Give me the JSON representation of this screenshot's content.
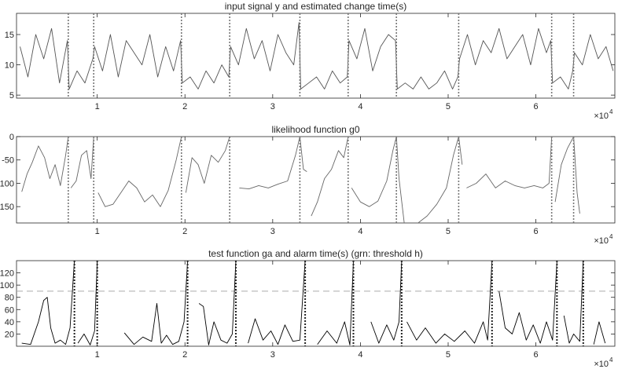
{
  "chart_data": [
    {
      "type": "line",
      "title": "input signal y and estimated change time(s)",
      "xlabel": "",
      "ylabel": "",
      "x_exponent": "×10",
      "x_exponent_power": "4",
      "xlim": [
        800,
        69000
      ],
      "ylim": [
        4.5,
        18.5
      ],
      "xticks": [
        10000,
        20000,
        30000,
        40000,
        50000,
        60000
      ],
      "xtick_labels": [
        "1",
        "2",
        "3",
        "4",
        "5",
        "6"
      ],
      "yticks": [
        5,
        10,
        15
      ],
      "ytick_labels": [
        "5",
        "10",
        "15"
      ],
      "grid": false,
      "change_times": [
        6700,
        9600,
        19600,
        25100,
        33100,
        38600,
        44100,
        51200,
        61800,
        64300
      ],
      "series": [
        {
          "color": "#555555",
          "x": [
            1200,
            2100,
            3000,
            3900,
            4800,
            5700,
            6600,
            6800,
            7700,
            8600,
            9500,
            9700,
            10600,
            11500,
            12400,
            13300,
            14200,
            15100,
            16000,
            16900,
            17800,
            18700,
            19500,
            19700,
            20600,
            21500,
            22400,
            23300,
            24200,
            25000,
            25200,
            26100,
            27000,
            27900,
            28800,
            29700,
            30600,
            31500,
            32400,
            33000,
            33200,
            34100,
            35000,
            35900,
            36800,
            37700,
            38500,
            38700,
            39600,
            40500,
            41400,
            42300,
            43200,
            44000,
            44200,
            45100,
            46000,
            46900,
            47800,
            48700,
            49600,
            50500,
            51100,
            51300,
            52200,
            53100,
            54000,
            54900,
            55800,
            56700,
            57600,
            58500,
            59400,
            60300,
            61200,
            61700,
            61900,
            62800,
            63700,
            64200,
            64400,
            65300,
            66200,
            67100,
            68000,
            68800
          ],
          "y": [
            13,
            8,
            15,
            11,
            16,
            7,
            14,
            6,
            9,
            7,
            11,
            13,
            9,
            15,
            8,
            14,
            12,
            10,
            15,
            8,
            13,
            9,
            14,
            7,
            8,
            6,
            9,
            7,
            10,
            8,
            13,
            10,
            16,
            11,
            14,
            9,
            15,
            12,
            10,
            17,
            6,
            7,
            8,
            6,
            9,
            7,
            8,
            14,
            11,
            16,
            9,
            13,
            15,
            14,
            6,
            7,
            6,
            8,
            6,
            7,
            9,
            6,
            8,
            11,
            15,
            10,
            14,
            12,
            16,
            11,
            13,
            15,
            10,
            16,
            12,
            14,
            7,
            8,
            6,
            9,
            12,
            10,
            15,
            11,
            13,
            9
          ]
        }
      ]
    },
    {
      "type": "line",
      "title": "likelihood function g0",
      "xlabel": "",
      "ylabel": "",
      "x_exponent": "×10",
      "x_exponent_power": "4",
      "xlim": [
        800,
        69000
      ],
      "ylim": [
        -185,
        0
      ],
      "xticks": [
        10000,
        20000,
        30000,
        40000,
        50000,
        60000
      ],
      "xtick_labels": [
        "1",
        "2",
        "3",
        "4",
        "5",
        "6"
      ],
      "yticks": [
        0,
        -50,
        -100,
        -150
      ],
      "ytick_labels": [
        "0",
        "-50",
        "-100",
        "-150"
      ],
      "grid": false,
      "change_times": [
        6700,
        9600,
        19600,
        25100,
        33100,
        38600,
        44100,
        51200,
        61800,
        64300
      ],
      "series": [
        {
          "color": "#666666",
          "x": [
            1400,
            2000,
            2600,
            3300,
            4000,
            4600,
            5200,
            5800,
            6400,
            6700,
            null,
            7000,
            7600,
            8200,
            8800,
            9300,
            9600,
            null,
            10100,
            10900,
            11800,
            12700,
            13600,
            14500,
            15400,
            16300,
            17200,
            18100,
            19000,
            19600,
            null,
            20100,
            20800,
            21500,
            22200,
            23000,
            23800,
            24600,
            25100,
            null,
            26200,
            27300,
            28400,
            29500,
            30600,
            31700,
            32600,
            33100,
            33500,
            33900,
            null,
            34400,
            35100,
            35900,
            36700,
            37500,
            38100,
            38600,
            null,
            39000,
            40000,
            41000,
            42000,
            43000,
            43700,
            44100,
            44400,
            45000,
            null,
            45400,
            46500,
            47600,
            48700,
            49800,
            50600,
            51200,
            51600,
            null,
            52100,
            53200,
            54300,
            55400,
            56500,
            57600,
            58700,
            59800,
            60800,
            61500,
            61800,
            null,
            62200,
            62900,
            63600,
            64300,
            64700,
            65000
          ],
          "y": [
            -118,
            -80,
            -55,
            -20,
            -45,
            -90,
            -60,
            -105,
            -40,
            0,
            null,
            -110,
            -95,
            -40,
            -30,
            -90,
            0,
            null,
            -120,
            -150,
            -145,
            -120,
            -95,
            -110,
            -140,
            -125,
            -150,
            -115,
            -50,
            0,
            null,
            -120,
            -45,
            -60,
            -100,
            -40,
            -55,
            -30,
            0,
            null,
            -110,
            -112,
            -105,
            -110,
            -102,
            -95,
            -40,
            0,
            -70,
            -75,
            null,
            -170,
            -140,
            -90,
            -70,
            -30,
            -45,
            0,
            null,
            -110,
            -140,
            -150,
            -138,
            -95,
            -30,
            0,
            -90,
            -186,
            null,
            -186,
            -186,
            -170,
            -145,
            -110,
            -40,
            0,
            -60,
            null,
            -110,
            -100,
            -80,
            -110,
            -95,
            -105,
            -110,
            -105,
            -110,
            -100,
            0,
            null,
            -140,
            -60,
            -25,
            0,
            -120,
            -165
          ]
        }
      ]
    },
    {
      "type": "line",
      "title": "test function ga and alarm time(s) (grn: threshold h)",
      "xlabel": "",
      "ylabel": "",
      "x_exponent": "×10",
      "x_exponent_power": "4",
      "xlim": [
        800,
        69000
      ],
      "ylim": [
        0,
        140
      ],
      "xticks": [
        10000,
        20000,
        30000,
        40000,
        50000,
        60000
      ],
      "xtick_labels": [
        "1",
        "2",
        "3",
        "4",
        "5",
        "6"
      ],
      "yticks": [
        20,
        40,
        60,
        80,
        100,
        120
      ],
      "ytick_labels": [
        "20",
        "40",
        "60",
        "80",
        "100",
        "120"
      ],
      "grid": false,
      "threshold": 90,
      "alarm_times": [
        7400,
        10000,
        20300,
        25800,
        33700,
        39200,
        44700,
        55000,
        62400,
        65400
      ],
      "series": [
        {
          "color": "#000000",
          "x": [
            1400,
            2400,
            3300,
            3900,
            4300,
            4700,
            5200,
            5800,
            6400,
            6900,
            7400,
            null,
            7800,
            8500,
            9200,
            9700,
            10000,
            null,
            13100,
            14200,
            15200,
            16200,
            16800,
            17300,
            17900,
            18600,
            19300,
            19900,
            20300,
            null,
            21600,
            22100,
            22700,
            23300,
            24100,
            24800,
            25400,
            25800,
            null,
            27200,
            28000,
            28900,
            29800,
            30600,
            31400,
            32300,
            33100,
            33700,
            null,
            35100,
            36200,
            37300,
            38200,
            38800,
            39200,
            null,
            41200,
            42100,
            43000,
            43800,
            44400,
            44700,
            null,
            45300,
            46400,
            47400,
            48600,
            49600,
            50700,
            51900,
            53000,
            54000,
            54500,
            55000,
            null,
            55800,
            56500,
            57300,
            58100,
            58900,
            59700,
            60500,
            61200,
            61900,
            62400,
            null,
            63200,
            63800,
            64300,
            65000,
            65400,
            null,
            66600,
            67200,
            67900
          ],
          "y": [
            5,
            3,
            40,
            75,
            80,
            30,
            5,
            10,
            3,
            30,
            140,
            null,
            5,
            20,
            2,
            25,
            140,
            null,
            22,
            3,
            15,
            8,
            70,
            5,
            18,
            3,
            8,
            40,
            140,
            null,
            70,
            65,
            2,
            40,
            10,
            5,
            20,
            140,
            null,
            5,
            45,
            10,
            25,
            3,
            35,
            8,
            10,
            140,
            null,
            3,
            25,
            5,
            40,
            2,
            140,
            null,
            40,
            5,
            35,
            10,
            40,
            140,
            null,
            40,
            10,
            30,
            5,
            20,
            8,
            25,
            5,
            40,
            10,
            140,
            null,
            90,
            30,
            20,
            55,
            10,
            35,
            5,
            40,
            10,
            140,
            null,
            50,
            5,
            20,
            8,
            140,
            null,
            3,
            40,
            5
          ]
        }
      ]
    }
  ]
}
